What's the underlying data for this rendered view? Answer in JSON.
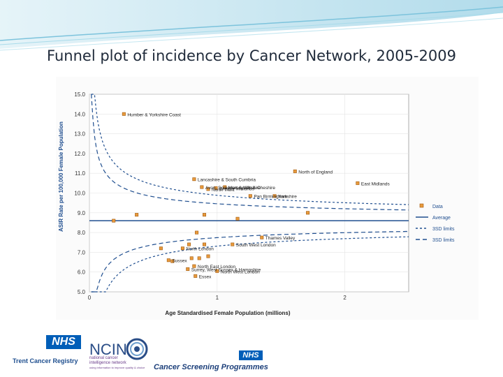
{
  "slide": {
    "title": "Funnel plot of incidence by Cancer Network, 2005-2009"
  },
  "chart_data": {
    "type": "scatter",
    "xlabel": "Age Standardised Female Population (millions)",
    "ylabel": "ASIR Rate per 100,000 Female Population",
    "xlim": [
      0,
      2.5
    ],
    "ylim": [
      5.0,
      15.0
    ],
    "xticks": [
      "0",
      "1",
      "2"
    ],
    "yticks": [
      "5.0",
      "6.0",
      "7.0",
      "8.0",
      "9.0",
      "10.0",
      "11.0",
      "12.0",
      "13.0",
      "14.0",
      "15.0"
    ],
    "grid": true,
    "legend_position": "right",
    "average": 8.6,
    "legend": [
      "Data",
      "Average",
      "3SD limits",
      "3SD limits"
    ],
    "points": [
      {
        "x": 0.27,
        "y": 14.0,
        "label": "Humber & Yorkshire Coast"
      },
      {
        "x": 0.82,
        "y": 10.7,
        "label": "Lancashire & South Cumbria"
      },
      {
        "x": 1.61,
        "y": 11.1,
        "label": "North of England"
      },
      {
        "x": 0.88,
        "y": 10.3,
        "label": "Avon, Somerset & Wiltshire"
      },
      {
        "x": 1.06,
        "y": 10.3,
        "label": "Merseyside & Cheshire"
      },
      {
        "x": 0.99,
        "y": 10.25,
        "label": "Greater Midlands"
      },
      {
        "x": 2.1,
        "y": 10.5,
        "label": "East Midlands"
      },
      {
        "x": 0.93,
        "y": 10.2,
        "label": "North Trent"
      },
      {
        "x": 1.26,
        "y": 9.85,
        "label": "Pan Birmingham"
      },
      {
        "x": 1.45,
        "y": 9.85,
        "label": "Yorkshire"
      },
      {
        "x": 0.19,
        "y": 8.6,
        "label": ""
      },
      {
        "x": 0.37,
        "y": 8.9,
        "label": ""
      },
      {
        "x": 0.9,
        "y": 8.9,
        "label": ""
      },
      {
        "x": 1.16,
        "y": 8.7,
        "label": ""
      },
      {
        "x": 1.71,
        "y": 9.0,
        "label": ""
      },
      {
        "x": 0.84,
        "y": 8.0,
        "label": ""
      },
      {
        "x": 1.35,
        "y": 7.75,
        "label": "Thames Valley"
      },
      {
        "x": 1.12,
        "y": 7.4,
        "label": "South West London"
      },
      {
        "x": 0.73,
        "y": 7.2,
        "label": "North London"
      },
      {
        "x": 0.78,
        "y": 7.4,
        "label": ""
      },
      {
        "x": 0.9,
        "y": 7.4,
        "label": ""
      },
      {
        "x": 0.56,
        "y": 7.2,
        "label": ""
      },
      {
        "x": 0.62,
        "y": 6.6,
        "label": "Sussex"
      },
      {
        "x": 0.65,
        "y": 6.55,
        "label": ""
      },
      {
        "x": 0.8,
        "y": 6.7,
        "label": ""
      },
      {
        "x": 0.86,
        "y": 6.7,
        "label": ""
      },
      {
        "x": 0.93,
        "y": 6.8,
        "label": ""
      },
      {
        "x": 0.82,
        "y": 6.3,
        "label": "North East London"
      },
      {
        "x": 0.77,
        "y": 6.15,
        "label": "Surrey, West Sussex & Hampshire"
      },
      {
        "x": 1.0,
        "y": 6.05,
        "label": "North West London"
      },
      {
        "x": 0.83,
        "y": 5.8,
        "label": "Essex"
      }
    ]
  },
  "logos": {
    "nhs": "NHS",
    "trent": "Trent Cancer Registry",
    "ncin": "NCIN",
    "ncin_sub1": "national cancer",
    "ncin_sub2": "intelligence network",
    "ncin_sub3": "using information to improve quality & choice",
    "screening": "Cancer Screening Programmes"
  },
  "colors": {
    "marker_fill": "#e89a3c",
    "marker_stroke": "#a05a10",
    "line": "#1f4e8f",
    "title": "#1f2a3a",
    "nhs_blue": "#005eb8"
  }
}
